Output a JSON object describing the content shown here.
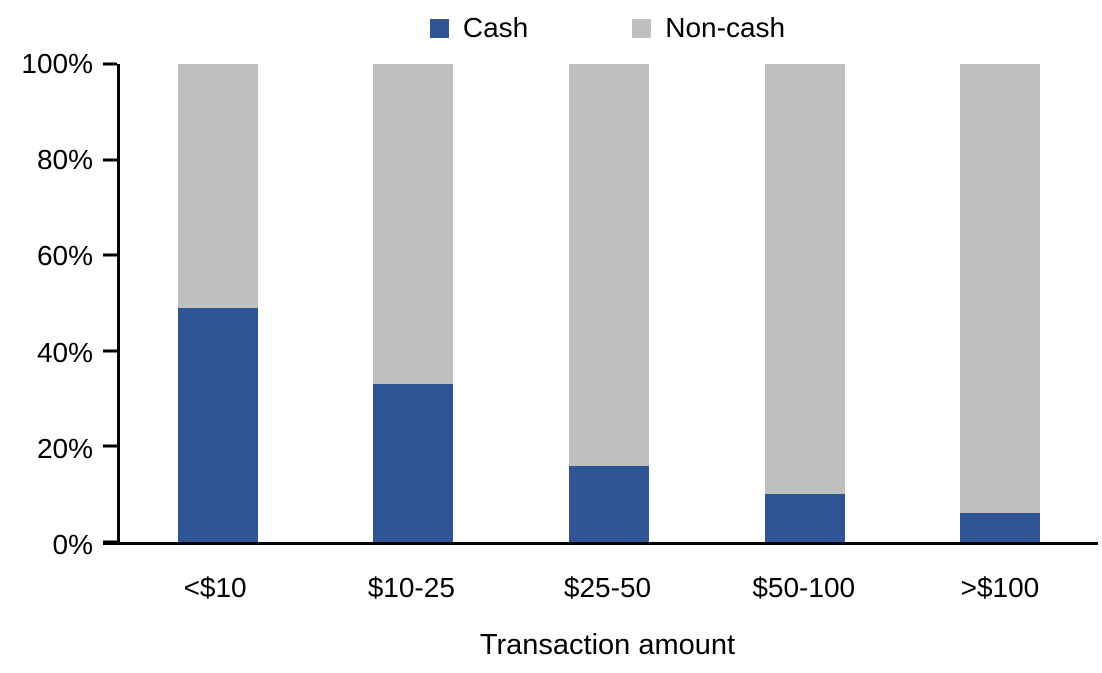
{
  "chart_data": {
    "type": "bar",
    "stacked": true,
    "title": "",
    "categories": [
      "<$10",
      "$10-25",
      "$25-50",
      "$50-100",
      ">$100"
    ],
    "series": [
      {
        "name": "Cash",
        "color": "#2F5597",
        "values": [
          49,
          33,
          16,
          10,
          6
        ]
      },
      {
        "name": "Non-cash",
        "color": "#BFBFBF",
        "values": [
          51,
          67,
          84,
          90,
          94
        ]
      }
    ],
    "xlabel": "Transaction amount",
    "ylabel": "",
    "ylim": [
      0,
      100
    ],
    "yticks": [
      {
        "value": 0,
        "label": "0%"
      },
      {
        "value": 20,
        "label": "20%"
      },
      {
        "value": 40,
        "label": "40%"
      },
      {
        "value": 60,
        "label": "60%"
      },
      {
        "value": 80,
        "label": "80%"
      },
      {
        "value": 100,
        "label": "100%"
      }
    ],
    "legend_position": "top",
    "grid": false,
    "axis_color": "#000000",
    "background_color": "#FFFFFF"
  }
}
